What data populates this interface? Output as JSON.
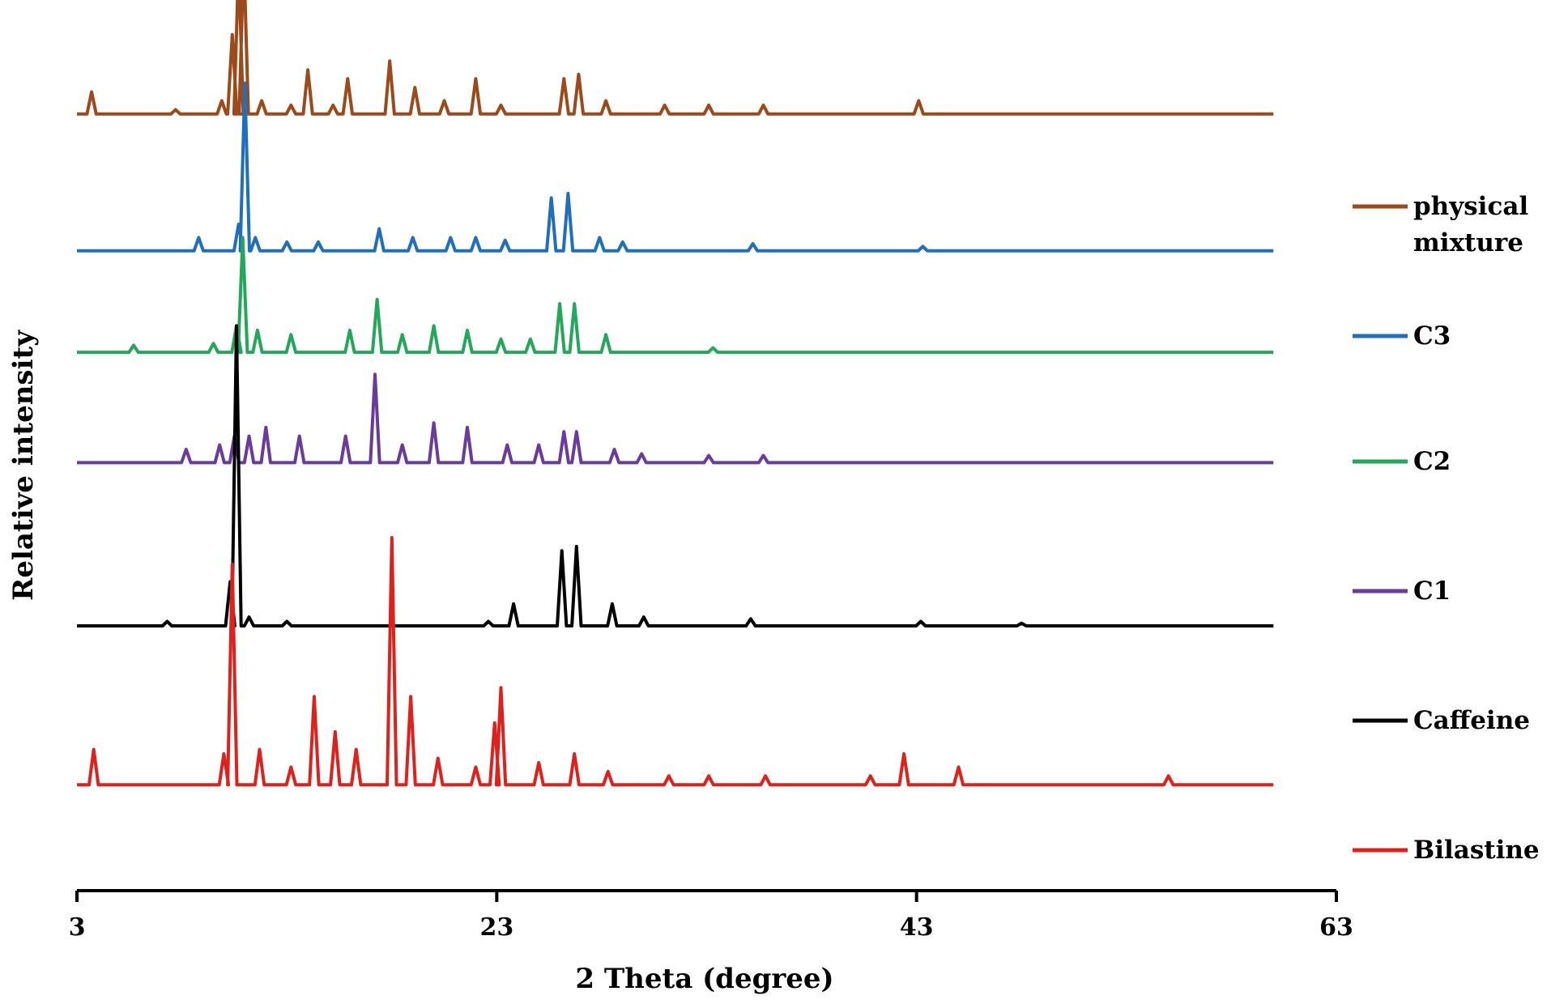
{
  "chart_data": {
    "type": "line",
    "title": "",
    "xlabel": "2 Theta (degree)",
    "ylabel": "Relative intensity",
    "xlim": [
      3,
      63
    ],
    "xticks": [
      3,
      23,
      43,
      63
    ],
    "ylim": [
      0,
      100
    ],
    "grid": false,
    "legend_position": "right",
    "series": [
      {
        "name": "physical mixture",
        "color": "#9C4A1A",
        "baseline": 88,
        "points": [
          [
            3,
            0
          ],
          [
            3.7,
            2.5
          ],
          [
            7.7,
            0.5
          ],
          [
            9.9,
            1.5
          ],
          [
            10.4,
            9
          ],
          [
            10.7,
            17
          ],
          [
            10.95,
            18
          ],
          [
            11.8,
            1.5
          ],
          [
            13.2,
            1
          ],
          [
            14.0,
            5
          ],
          [
            15.2,
            1
          ],
          [
            15.9,
            4
          ],
          [
            17.9,
            6
          ],
          [
            19.1,
            3
          ],
          [
            20.5,
            1.5
          ],
          [
            22.0,
            4
          ],
          [
            23.2,
            1
          ],
          [
            26.2,
            4
          ],
          [
            26.9,
            4.5
          ],
          [
            28.2,
            1.5
          ],
          [
            31.0,
            1
          ],
          [
            33.1,
            1
          ],
          [
            35.7,
            1
          ],
          [
            43.1,
            1.5
          ],
          [
            60,
            0
          ]
        ]
      },
      {
        "name": "C3",
        "color": "#1F6FBF",
        "baseline": 72.5,
        "points": [
          [
            3,
            0
          ],
          [
            8.8,
            1.5
          ],
          [
            10.7,
            3
          ],
          [
            11.0,
            19
          ],
          [
            11.5,
            1.5
          ],
          [
            13.0,
            1
          ],
          [
            14.5,
            1
          ],
          [
            17.4,
            2.5
          ],
          [
            19.0,
            1.5
          ],
          [
            20.8,
            1.5
          ],
          [
            22.0,
            1.5
          ],
          [
            23.4,
            1.2
          ],
          [
            25.6,
            6
          ],
          [
            26.4,
            6.5
          ],
          [
            27.9,
            1.5
          ],
          [
            29.0,
            1
          ],
          [
            35.2,
            0.8
          ],
          [
            43.3,
            0.5
          ],
          [
            60,
            0
          ]
        ]
      },
      {
        "name": "C2",
        "color": "#23A85A",
        "baseline": 61,
        "points": [
          [
            3,
            0
          ],
          [
            5.7,
            0.8
          ],
          [
            9.5,
            1
          ],
          [
            10.6,
            3
          ],
          [
            10.9,
            13
          ],
          [
            11.6,
            2.5
          ],
          [
            13.2,
            2
          ],
          [
            16.0,
            2.5
          ],
          [
            17.3,
            6
          ],
          [
            18.5,
            2
          ],
          [
            20.0,
            3
          ],
          [
            21.6,
            2.5
          ],
          [
            23.2,
            1.5
          ],
          [
            24.6,
            1.5
          ],
          [
            26.0,
            5.5
          ],
          [
            26.7,
            5.5
          ],
          [
            28.2,
            2
          ],
          [
            33.3,
            0.5
          ],
          [
            60,
            0
          ]
        ]
      },
      {
        "name": "C1",
        "color": "#6A3A9C",
        "baseline": 48.5,
        "points": [
          [
            3,
            0
          ],
          [
            8.2,
            1.5
          ],
          [
            9.8,
            2
          ],
          [
            10.5,
            3
          ],
          [
            11.2,
            3
          ],
          [
            12.0,
            4
          ],
          [
            13.6,
            3
          ],
          [
            15.8,
            3
          ],
          [
            17.2,
            10
          ],
          [
            18.5,
            2
          ],
          [
            20.0,
            4.5
          ],
          [
            21.6,
            4
          ],
          [
            23.5,
            2
          ],
          [
            25.0,
            2
          ],
          [
            26.2,
            3.5
          ],
          [
            26.8,
            3.5
          ],
          [
            28.6,
            1.5
          ],
          [
            29.9,
            1
          ],
          [
            33.1,
            0.8
          ],
          [
            35.7,
            0.8
          ],
          [
            60,
            0
          ]
        ]
      },
      {
        "name": "Caffeine",
        "color": "#000000",
        "baseline": 30,
        "points": [
          [
            3,
            0
          ],
          [
            7.3,
            0.5
          ],
          [
            10.3,
            5
          ],
          [
            10.6,
            34
          ],
          [
            11.2,
            1
          ],
          [
            13.0,
            0.5
          ],
          [
            22.6,
            0.5
          ],
          [
            23.8,
            2.5
          ],
          [
            26.1,
            8.5
          ],
          [
            26.8,
            9
          ],
          [
            28.5,
            2.5
          ],
          [
            30.0,
            1
          ],
          [
            35.1,
            0.8
          ],
          [
            43.2,
            0.5
          ],
          [
            48.0,
            0.3
          ],
          [
            60,
            0
          ]
        ]
      },
      {
        "name": "Bilastine",
        "color": "#E0201B",
        "baseline": 12,
        "points": [
          [
            3,
            0
          ],
          [
            3.8,
            4
          ],
          [
            10.0,
            3.5
          ],
          [
            10.4,
            25
          ],
          [
            11.7,
            4
          ],
          [
            13.2,
            2
          ],
          [
            14.3,
            10
          ],
          [
            15.3,
            6
          ],
          [
            16.3,
            4
          ],
          [
            18.0,
            28
          ],
          [
            18.9,
            10
          ],
          [
            20.2,
            3
          ],
          [
            22.0,
            2
          ],
          [
            22.9,
            7
          ],
          [
            23.2,
            11
          ],
          [
            25.0,
            2.5
          ],
          [
            26.7,
            3.5
          ],
          [
            28.3,
            1.5
          ],
          [
            31.2,
            1
          ],
          [
            33.1,
            1
          ],
          [
            35.8,
            1
          ],
          [
            40.8,
            1
          ],
          [
            42.4,
            3.5
          ],
          [
            45.0,
            2
          ],
          [
            55.0,
            1
          ],
          [
            60,
            0
          ]
        ]
      }
    ]
  }
}
